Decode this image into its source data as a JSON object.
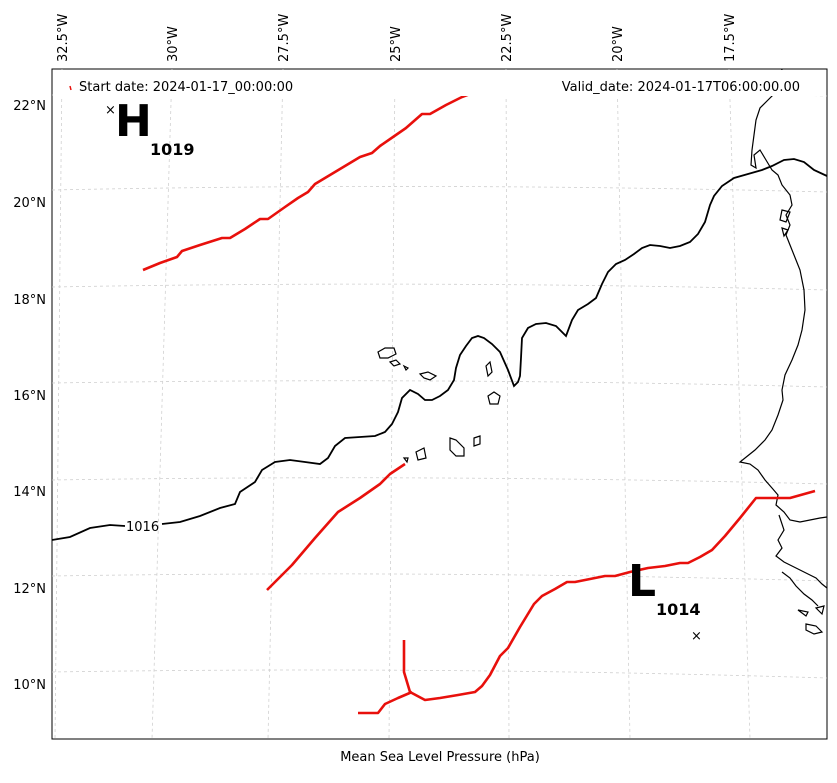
{
  "header": {
    "start_date": "Start date: 2024-01-17_00:00:00",
    "valid_date": "Valid_date: 2024-01-17T06:00:00.00"
  },
  "footer": {
    "caption": "Mean Sea Level Pressure (hPa)"
  },
  "axes": {
    "lon_labels": [
      "32.5°W",
      "30°W",
      "27.5°W",
      "25°W",
      "22.5°W",
      "20°W",
      "17.5°W"
    ],
    "lat_labels": [
      "22°N",
      "20°N",
      "18°N",
      "16°N",
      "14°N",
      "12°N",
      "10°N"
    ]
  },
  "high": {
    "letter": "H",
    "value": "1019",
    "marker": "×"
  },
  "low": {
    "letter": "L",
    "value": "1014",
    "marker": "×"
  },
  "isobar_label": "1016",
  "colors": {
    "front": "#e8100c",
    "isobar": "#000000",
    "grid": "#d0d0d0"
  }
}
